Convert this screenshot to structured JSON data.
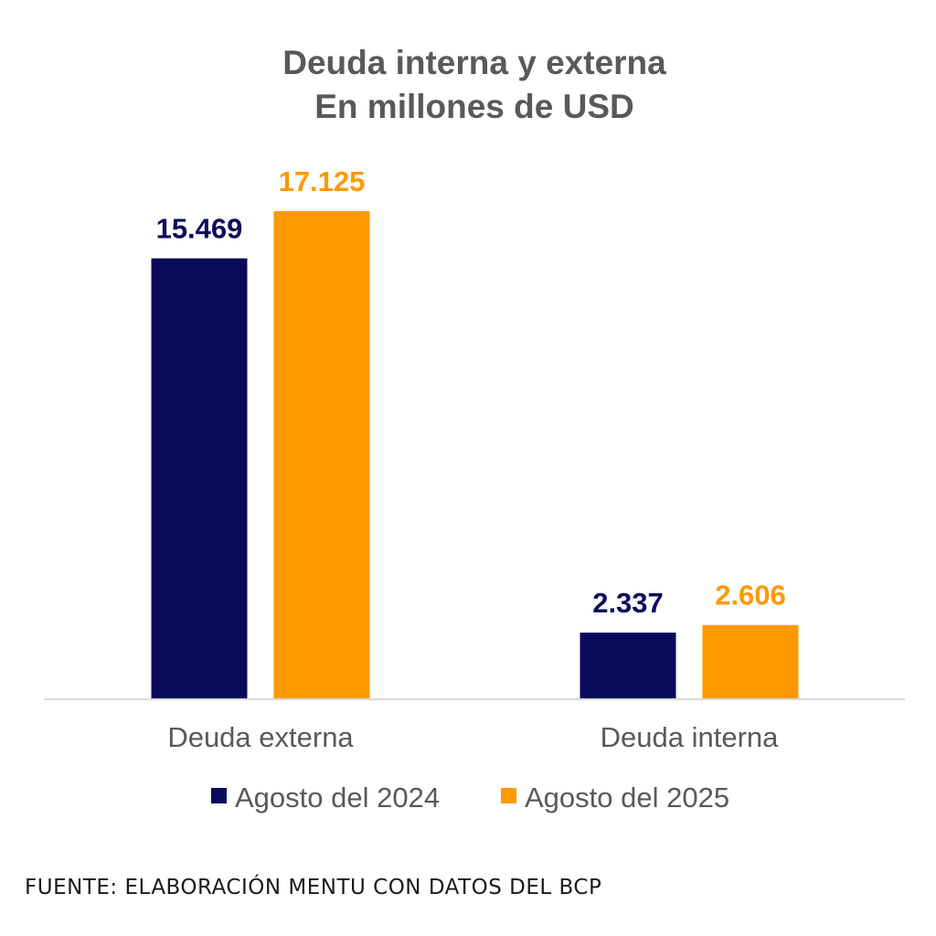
{
  "chart_data": {
    "type": "bar",
    "title": "Deuda interna y externa",
    "subtitle": "En millones de USD",
    "categories": [
      "Deuda externa",
      "Deuda interna"
    ],
    "series": [
      {
        "name": "Agosto del 2024",
        "values": [
          15469,
          2337
        ],
        "labels": [
          "15.469",
          "2.337"
        ],
        "color": "#0a0a5c"
      },
      {
        "name": "Agosto del 2025",
        "values": [
          17125,
          2606
        ],
        "labels": [
          "17.125",
          "2.606"
        ],
        "color": "#ff9900"
      }
    ],
    "ylim": [
      0,
      17125
    ],
    "grid": false,
    "legend": "bottom"
  },
  "source": "FUENTE: ELABORACIÓN MENTU CON DATOS DEL BCP"
}
